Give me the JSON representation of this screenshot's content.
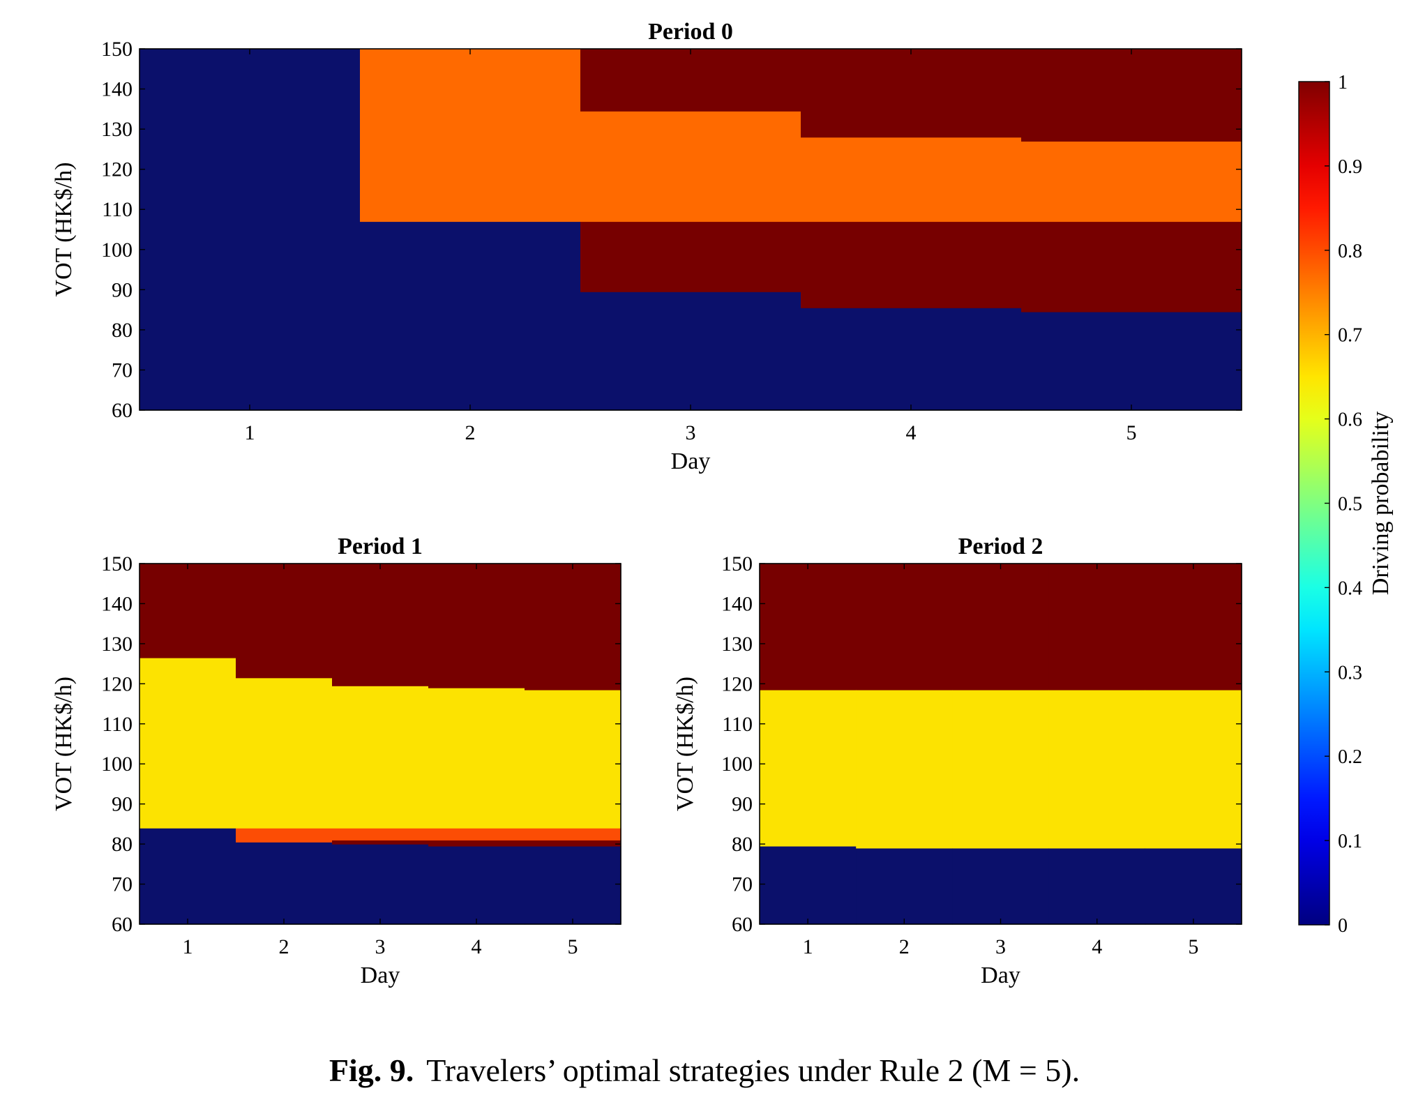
{
  "figure": {
    "caption_label": "Fig. 9.",
    "caption_text": "Travelers’ optimal strategies under Rule 2 (M = 5)."
  },
  "colors": {
    "blue_0": "#0b106b",
    "orange_0_75": "#ff6a00",
    "orange_red_0_8": "#fc4d05",
    "yellow_0_625": "#fce301",
    "dark_red_1": "#770000"
  },
  "chart_data": [
    {
      "type": "heatmap",
      "title": "Period 0",
      "xlabel": "Day",
      "ylabel": "VOT (HK$/h)",
      "x_ticks": [
        "1",
        "2",
        "3",
        "4",
        "5"
      ],
      "y_ticks": [
        "60",
        "70",
        "80",
        "90",
        "100",
        "110",
        "120",
        "130",
        "140",
        "150"
      ],
      "xlim": [
        0.5,
        5.5
      ],
      "ylim": [
        60,
        150
      ],
      "grid": false,
      "segments": [
        {
          "day": 1,
          "bands": [
            {
              "from": 60,
              "to": 150,
              "value": 0
            }
          ]
        },
        {
          "day": 2,
          "bands": [
            {
              "from": 60,
              "to": 107,
              "value": 0
            },
            {
              "from": 107,
              "to": 150,
              "value": 0.75
            }
          ]
        },
        {
          "day": 3,
          "bands": [
            {
              "from": 60,
              "to": 89.5,
              "value": 0
            },
            {
              "from": 89.5,
              "to": 107,
              "value": 1
            },
            {
              "from": 107,
              "to": 134.5,
              "value": 0.75
            },
            {
              "from": 134.5,
              "to": 150,
              "value": 1
            }
          ]
        },
        {
          "day": 4,
          "bands": [
            {
              "from": 60,
              "to": 85.5,
              "value": 0
            },
            {
              "from": 85.5,
              "to": 107,
              "value": 1
            },
            {
              "from": 107,
              "to": 128,
              "value": 0.75
            },
            {
              "from": 128,
              "to": 150,
              "value": 1
            }
          ]
        },
        {
          "day": 5,
          "bands": [
            {
              "from": 60,
              "to": 84.5,
              "value": 0
            },
            {
              "from": 84.5,
              "to": 107,
              "value": 1
            },
            {
              "from": 107,
              "to": 127,
              "value": 0.75
            },
            {
              "from": 127,
              "to": 150,
              "value": 1
            }
          ]
        }
      ]
    },
    {
      "type": "heatmap",
      "title": "Period 1",
      "xlabel": "Day",
      "ylabel": "VOT (HK$/h)",
      "x_ticks": [
        "1",
        "2",
        "3",
        "4",
        "5"
      ],
      "y_ticks": [
        "60",
        "70",
        "80",
        "90",
        "100",
        "110",
        "120",
        "130",
        "140",
        "150"
      ],
      "xlim": [
        0.5,
        5.5
      ],
      "ylim": [
        60,
        150
      ],
      "grid": false,
      "segments": [
        {
          "day": 1,
          "bands": [
            {
              "from": 60,
              "to": 84,
              "value": 0
            },
            {
              "from": 84,
              "to": 126.5,
              "value": 0.625
            },
            {
              "from": 126.5,
              "to": 150,
              "value": 1
            }
          ]
        },
        {
          "day": 2,
          "bands": [
            {
              "from": 60,
              "to": 80.5,
              "value": 0
            },
            {
              "from": 80.5,
              "to": 84,
              "value": 0.8
            },
            {
              "from": 84,
              "to": 121.5,
              "value": 0.625
            },
            {
              "from": 121.5,
              "to": 150,
              "value": 1
            }
          ]
        },
        {
          "day": 3,
          "bands": [
            {
              "from": 60,
              "to": 80,
              "value": 0
            },
            {
              "from": 80,
              "to": 81,
              "value": 1
            },
            {
              "from": 81,
              "to": 84,
              "value": 0.8
            },
            {
              "from": 84,
              "to": 119.5,
              "value": 0.625
            },
            {
              "from": 119.5,
              "to": 150,
              "value": 1
            }
          ]
        },
        {
          "day": 4,
          "bands": [
            {
              "from": 60,
              "to": 79.5,
              "value": 0
            },
            {
              "from": 79.5,
              "to": 81,
              "value": 1
            },
            {
              "from": 81,
              "to": 84,
              "value": 0.8
            },
            {
              "from": 84,
              "to": 119,
              "value": 0.625
            },
            {
              "from": 119,
              "to": 150,
              "value": 1
            }
          ]
        },
        {
          "day": 5,
          "bands": [
            {
              "from": 60,
              "to": 79.5,
              "value": 0
            },
            {
              "from": 79.5,
              "to": 81,
              "value": 1
            },
            {
              "from": 81,
              "to": 84,
              "value": 0.8
            },
            {
              "from": 84,
              "to": 118.5,
              "value": 0.625
            },
            {
              "from": 118.5,
              "to": 150,
              "value": 1
            }
          ]
        }
      ]
    },
    {
      "type": "heatmap",
      "title": "Period 2",
      "xlabel": "Day",
      "ylabel": "VOT (HK$/h)",
      "x_ticks": [
        "1",
        "2",
        "3",
        "4",
        "5"
      ],
      "y_ticks": [
        "60",
        "70",
        "80",
        "90",
        "100",
        "110",
        "120",
        "130",
        "140",
        "150"
      ],
      "xlim": [
        0.5,
        5.5
      ],
      "ylim": [
        60,
        150
      ],
      "grid": false,
      "segments": [
        {
          "day": 1,
          "bands": [
            {
              "from": 60,
              "to": 79.5,
              "value": 0
            },
            {
              "from": 79.5,
              "to": 118.5,
              "value": 0.625
            },
            {
              "from": 118.5,
              "to": 150,
              "value": 1
            }
          ]
        },
        {
          "day": 2,
          "bands": [
            {
              "from": 60,
              "to": 79,
              "value": 0
            },
            {
              "from": 79,
              "to": 118.5,
              "value": 0.625
            },
            {
              "from": 118.5,
              "to": 150,
              "value": 1
            }
          ]
        },
        {
          "day": 3,
          "bands": [
            {
              "from": 60,
              "to": 79,
              "value": 0
            },
            {
              "from": 79,
              "to": 118.5,
              "value": 0.625
            },
            {
              "from": 118.5,
              "to": 150,
              "value": 1
            }
          ]
        },
        {
          "day": 4,
          "bands": [
            {
              "from": 60,
              "to": 79,
              "value": 0
            },
            {
              "from": 79,
              "to": 118.5,
              "value": 0.625
            },
            {
              "from": 118.5,
              "to": 150,
              "value": 1
            }
          ]
        },
        {
          "day": 5,
          "bands": [
            {
              "from": 60,
              "to": 79,
              "value": 0
            },
            {
              "from": 79,
              "to": 118.5,
              "value": 0.625
            },
            {
              "from": 118.5,
              "to": 150,
              "value": 1
            }
          ]
        }
      ]
    }
  ],
  "colorbar": {
    "label": "Driving probability",
    "range": [
      0,
      1
    ],
    "colormap": "jet",
    "ticks": [
      "0",
      "0.1",
      "0.2",
      "0.3",
      "0.4",
      "0.5",
      "0.6",
      "0.7",
      "0.8",
      "0.9",
      "1"
    ]
  }
}
